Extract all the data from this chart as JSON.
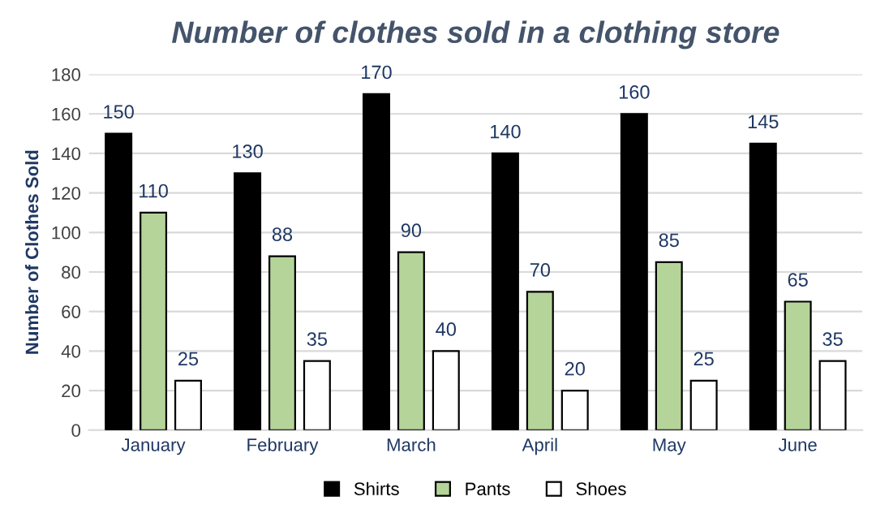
{
  "chart_data": {
    "type": "bar",
    "title": "Number of clothes sold in a clothing store",
    "ylabel": "Number of Clothes Sold",
    "categories": [
      "January",
      "February",
      "March",
      "April",
      "May",
      "June"
    ],
    "series": [
      {
        "name": "Shirts",
        "color": "#000000",
        "values": [
          150,
          130,
          170,
          140,
          160,
          145
        ]
      },
      {
        "name": "Pants",
        "color": "#b5d49a",
        "values": [
          110,
          88,
          90,
          70,
          85,
          65
        ]
      },
      {
        "name": "Shoes",
        "color": "#ffffff",
        "values": [
          25,
          35,
          40,
          20,
          25,
          35
        ]
      }
    ],
    "ylim": [
      0,
      180
    ],
    "yticks": [
      0,
      20,
      40,
      60,
      80,
      100,
      120,
      140,
      160,
      180
    ],
    "grid": "y",
    "legend": "bottom",
    "data_labels": true
  }
}
